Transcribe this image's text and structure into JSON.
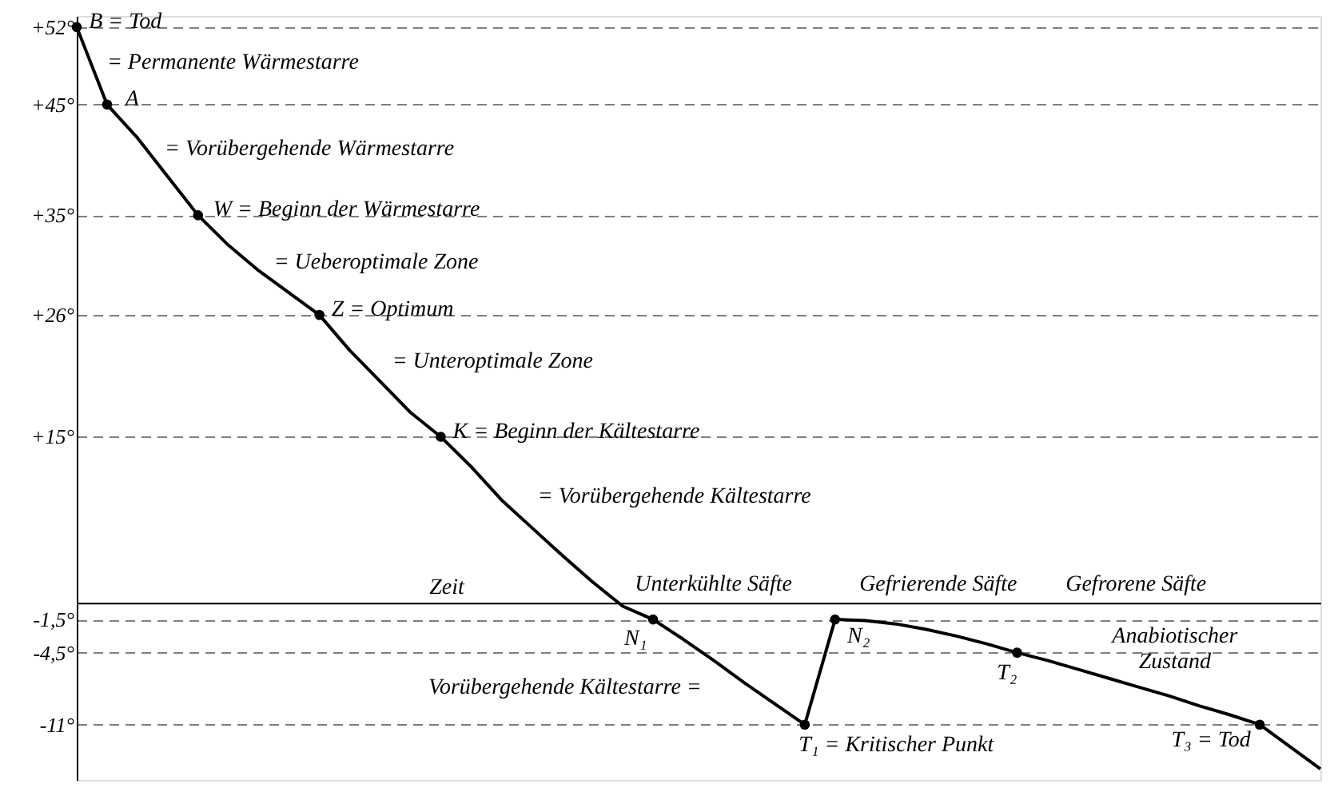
{
  "chart_data": {
    "type": "line",
    "categories": [
      null,
      null,
      null,
      null,
      null,
      null,
      null,
      null,
      null,
      null,
      null,
      null,
      null,
      null,
      null,
      null,
      null,
      null,
      null,
      null,
      null,
      null,
      null,
      null,
      null,
      null,
      null,
      null,
      null,
      null,
      null,
      null,
      null,
      null,
      null,
      null,
      null,
      null,
      null,
      null,
      null,
      null
    ],
    "xlabel": "Zeit",
    "ylim": [
      -16,
      53
    ],
    "yticks": [
      {
        "value": 52,
        "label": "+52°"
      },
      {
        "value": 45,
        "label": "+45°"
      },
      {
        "value": 35,
        "label": "+35°"
      },
      {
        "value": 26,
        "label": "+26°"
      },
      {
        "value": 15,
        "label": "+15°"
      },
      {
        "value": -1.5,
        "label": "-1,5°"
      },
      {
        "value": -4.5,
        "label": "-4,5°"
      },
      {
        "value": -11,
        "label": "-11°"
      }
    ],
    "grid": "y",
    "tick_labels": "y",
    "series": [
      {
        "color": "#000000",
        "marker": "none",
        "line_style": "solid",
        "values": [
          52,
          45,
          42,
          38.5,
          35,
          32.3,
          30,
          28,
          26,
          22.8,
          20,
          17.2,
          15,
          12.3,
          9.3,
          6.8,
          4.3,
          1.9,
          -0.3,
          -1.5,
          -3.3,
          -5.2,
          -7.2,
          -9.1,
          -11,
          -1.5,
          -1.6,
          -1.9,
          -2.4,
          -3,
          -3.7,
          -4.5,
          -5.2,
          -6,
          -6.8,
          -7.6,
          -8.4,
          -9.3,
          -10.1,
          -11,
          -13,
          -15
        ]
      },
      {
        "type": "scatter",
        "color": "#000000",
        "marker": "circle",
        "values": [
          52,
          45,
          null,
          null,
          35,
          null,
          null,
          null,
          26,
          null,
          null,
          null,
          15,
          null,
          null,
          null,
          null,
          null,
          null,
          -1.5,
          null,
          null,
          null,
          null,
          -11,
          -1.5,
          null,
          null,
          null,
          null,
          null,
          -4.5,
          null,
          null,
          null,
          null,
          null,
          null,
          null,
          -11,
          null,
          null
        ]
      }
    ],
    "annotations": [
      "B = Tod",
      "= Permanente Wärmestarre",
      "A",
      "= Vorübergehende Wärmestarre",
      "W = Beginn der Wärmestarre",
      "= Ueberoptimale Zone",
      "Z = Optimum",
      "= Unteroptimale Zone",
      "K = Beginn der Kältestarre",
      "= Vorübergehende Kältestarre",
      "Unterkühlte Säfte",
      "Gefrierende Säfte",
      "Gefrorene Säfte",
      "N₁",
      "N₂",
      "Anabiotischer Zustand",
      "T₂",
      "Vorübergehende Kältestarre =",
      "T₁ = Kritischer Punkt",
      "T₃ = Tod"
    ]
  }
}
